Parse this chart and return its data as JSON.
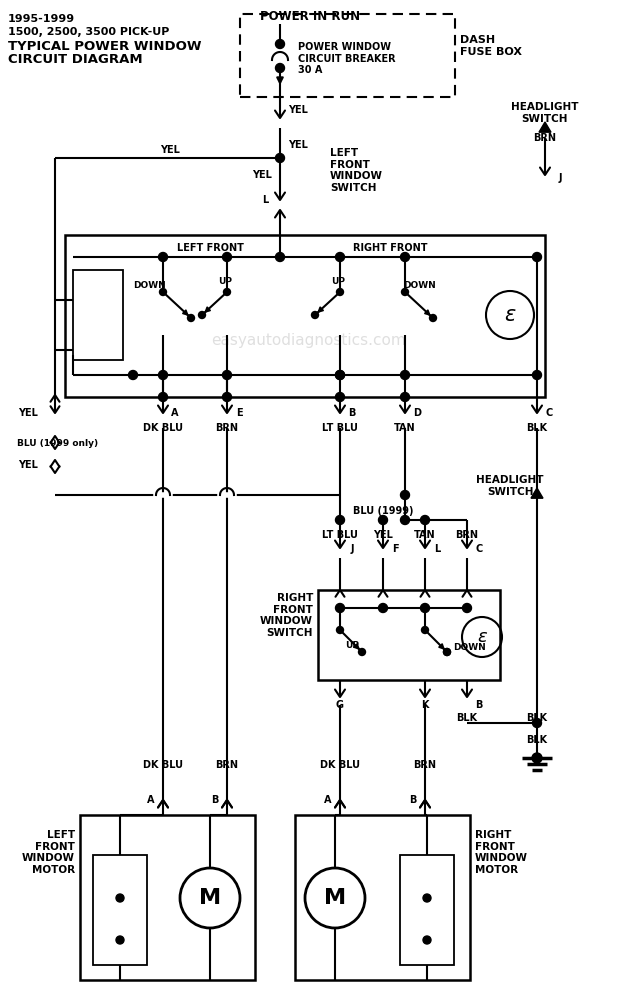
{
  "title": [
    "1995-1999",
    "1500, 2500, 3500 PICK-UP",
    "TYPICAL POWER WINDOW",
    "CIRCUIT DIAGRAM"
  ],
  "watermark": "easyautodiagnostics.com",
  "bg": "#ffffff"
}
